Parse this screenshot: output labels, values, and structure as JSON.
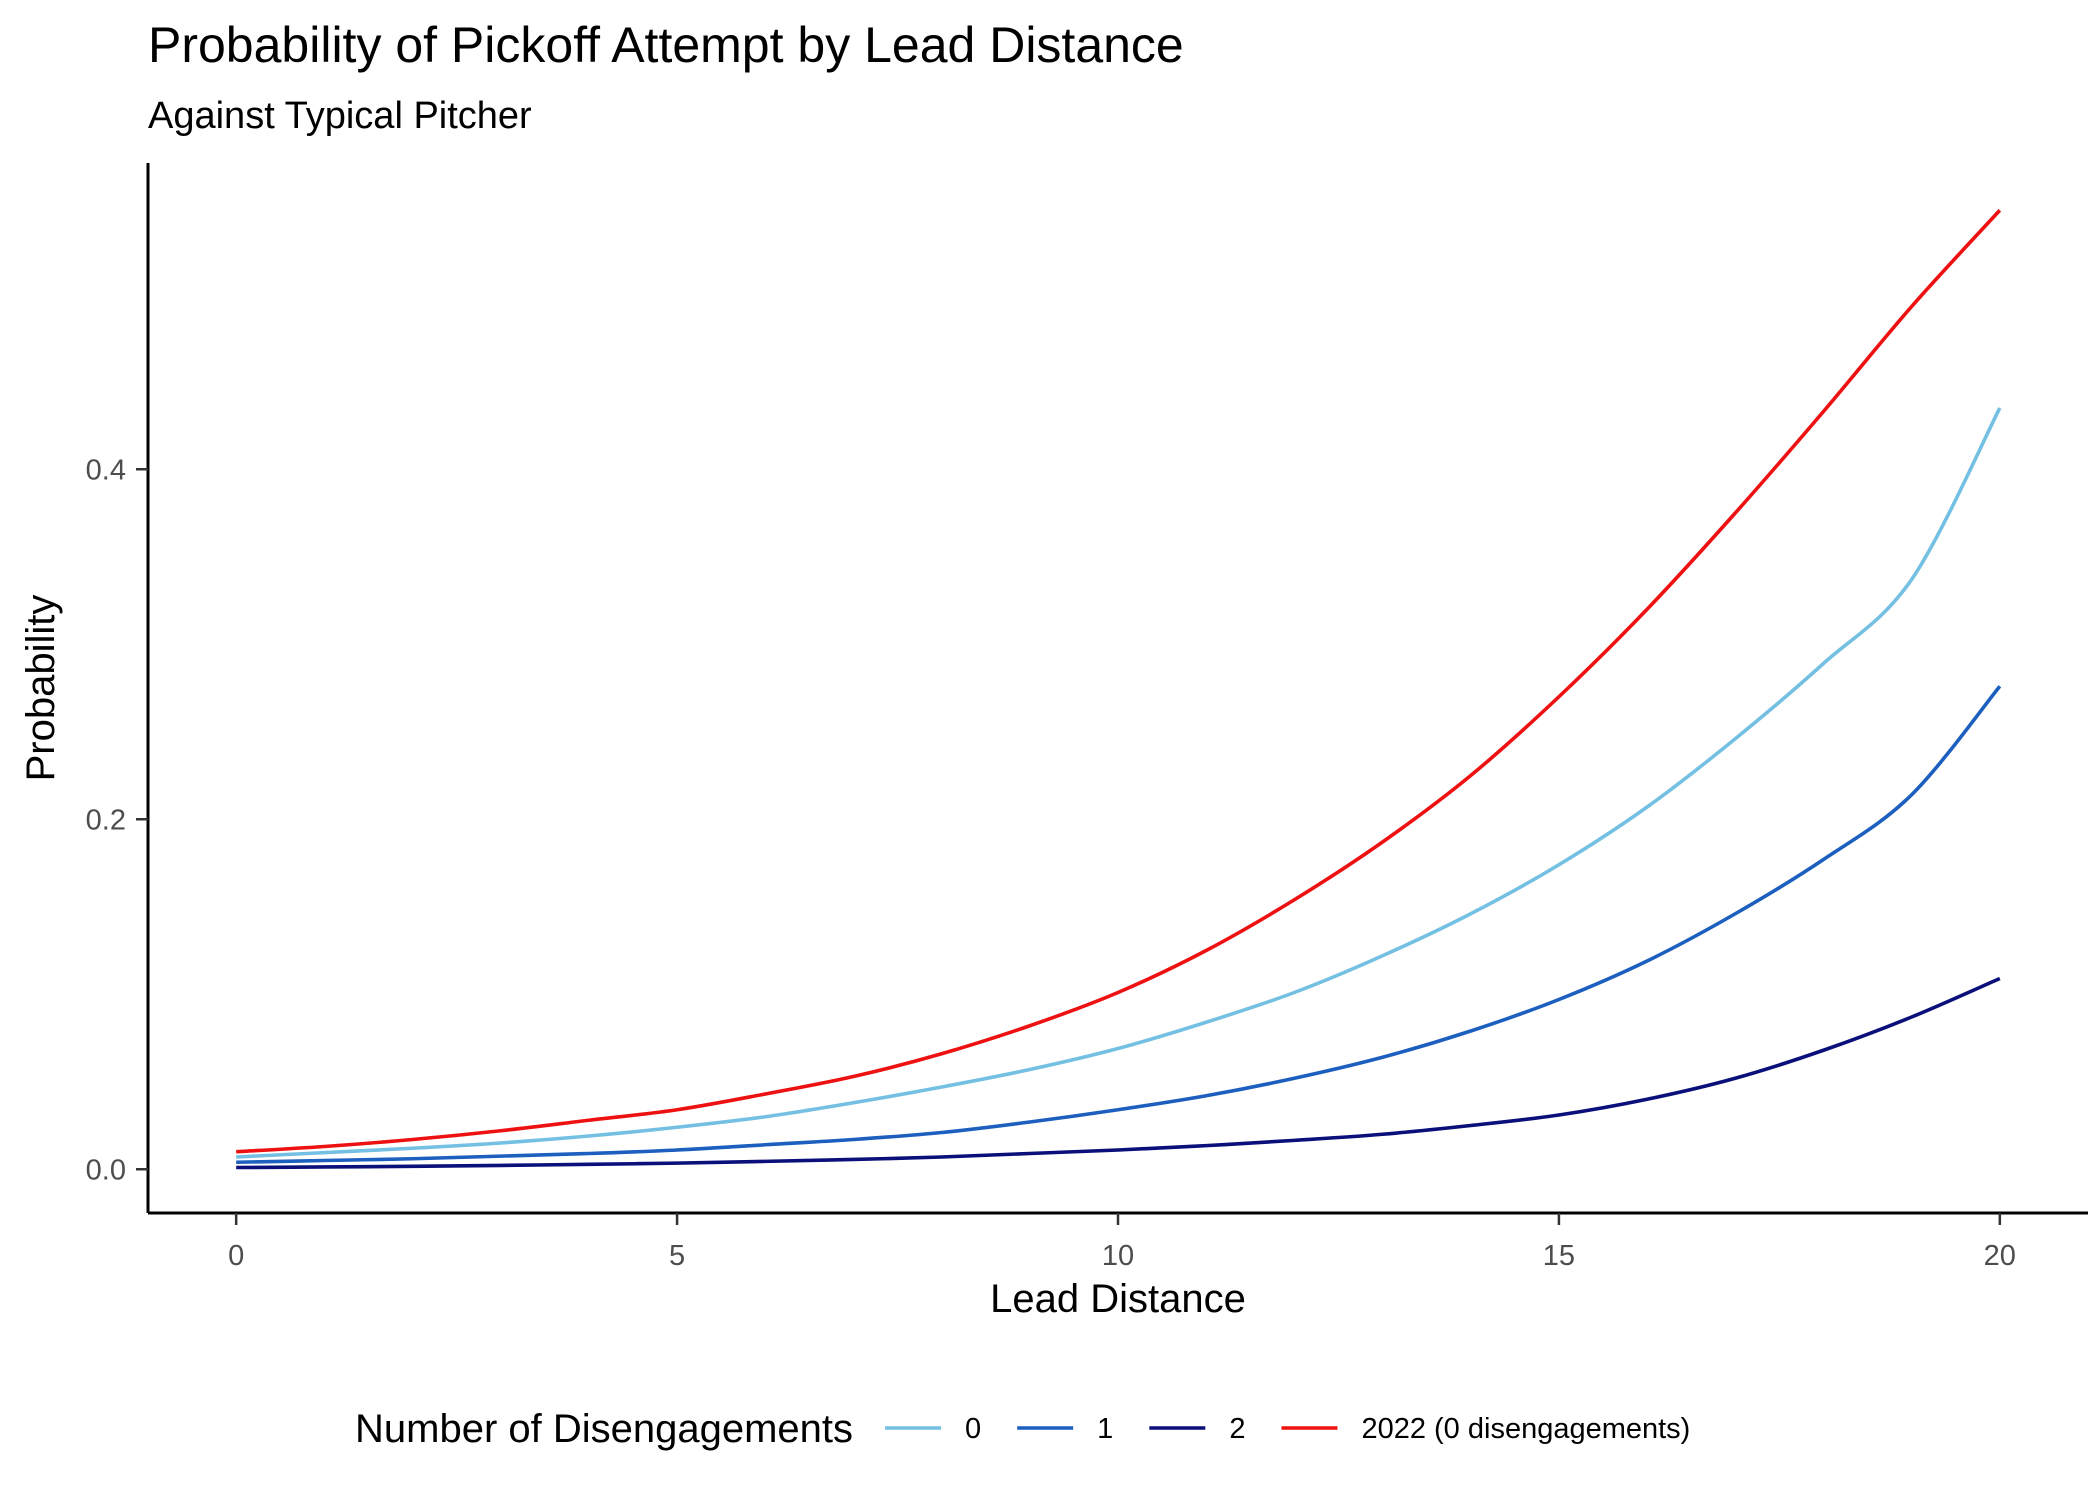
{
  "chart_data": {
    "type": "line",
    "title": "Probability of Pickoff Attempt by Lead Distance",
    "subtitle": "Against Typical Pitcher",
    "xlabel": "Lead Distance",
    "ylabel": "Probability",
    "xlim": [
      -1,
      21
    ],
    "ylim": [
      -0.025,
      0.575
    ],
    "x_ticks": [
      0,
      5,
      10,
      15,
      20
    ],
    "x_tick_labels": [
      "0",
      "5",
      "10",
      "15",
      "20"
    ],
    "y_ticks": [
      0.0,
      0.2,
      0.4
    ],
    "y_tick_labels": [
      "0.0",
      "0.2",
      "0.4"
    ],
    "grid": false,
    "legend_position": "bottom",
    "legend_title": "Number of Disengagements",
    "x": [
      0,
      1,
      2,
      3,
      4,
      5,
      6,
      7,
      8,
      9,
      10,
      11,
      12,
      13,
      14,
      15,
      16,
      17,
      18,
      19,
      20
    ],
    "series": [
      {
        "name": "0",
        "color": "#74c0e3",
        "values": [
          0.007,
          0.0095,
          0.012,
          0.015,
          0.019,
          0.024,
          0.03,
          0.038,
          0.047,
          0.057,
          0.069,
          0.084,
          0.101,
          0.122,
          0.146,
          0.174,
          0.207,
          0.246,
          0.289,
          0.337,
          0.435
        ]
      },
      {
        "name": "1",
        "color": "#1c5fbf",
        "values": [
          0.004,
          0.005,
          0.006,
          0.0075,
          0.009,
          0.011,
          0.014,
          0.017,
          0.021,
          0.027,
          0.034,
          0.042,
          0.052,
          0.064,
          0.079,
          0.097,
          0.119,
          0.146,
          0.177,
          0.214,
          0.276
        ]
      },
      {
        "name": "2",
        "color": "#0a0f7a",
        "values": [
          0.001,
          0.0013,
          0.0017,
          0.0022,
          0.0028,
          0.0035,
          0.0045,
          0.0056,
          0.007,
          0.009,
          0.011,
          0.0135,
          0.0165,
          0.02,
          0.025,
          0.031,
          0.04,
          0.052,
          0.068,
          0.087,
          0.109
        ]
      },
      {
        "name": "2022 (0 disengagements)",
        "color": "#ee1111",
        "values": [
          0.01,
          0.013,
          0.017,
          0.022,
          0.028,
          0.034,
          0.043,
          0.053,
          0.066,
          0.082,
          0.101,
          0.125,
          0.154,
          0.187,
          0.225,
          0.27,
          0.32,
          0.375,
          0.433,
          0.493,
          0.548
        ]
      }
    ]
  }
}
